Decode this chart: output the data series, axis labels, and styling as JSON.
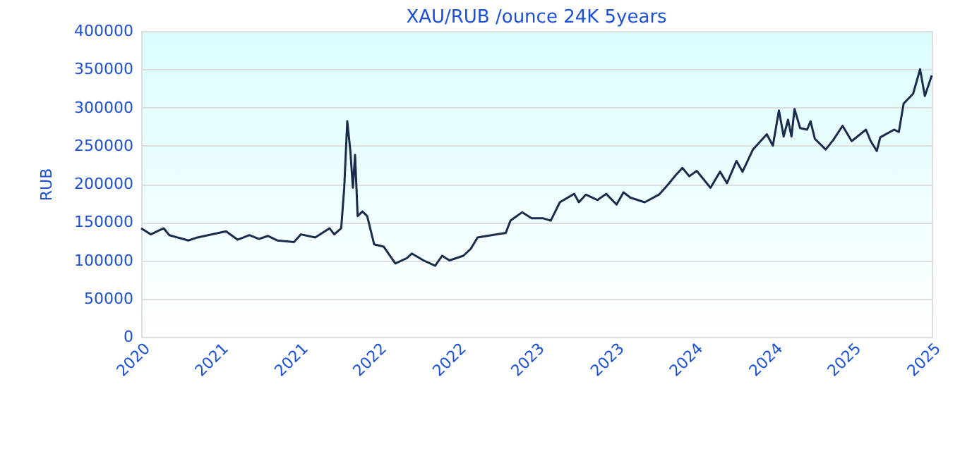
{
  "chart_data": {
    "type": "line",
    "title": "XAU/RUB /ounce 24K 5years",
    "ylabel": "RUB",
    "x": [
      "2020-11-01",
      "2020-11-23",
      "2020-12-23",
      "2021-01-05",
      "2021-02-18",
      "2021-03-11",
      "2021-05-16",
      "2021-06-12",
      "2021-07-09",
      "2021-07-31",
      "2021-08-21",
      "2021-09-12",
      "2021-10-20",
      "2021-11-05",
      "2021-12-08",
      "2022-01-10",
      "2022-01-21",
      "2022-02-06",
      "2022-02-13",
      "2022-02-20",
      "2022-02-27",
      "2022-03-05",
      "2022-03-10",
      "2022-03-16",
      "2022-03-27",
      "2022-04-07",
      "2022-04-23",
      "2022-05-15",
      "2022-06-11",
      "2022-07-08",
      "2022-07-19",
      "2022-08-15",
      "2022-09-11",
      "2022-09-27",
      "2022-10-14",
      "2022-11-15",
      "2022-12-02",
      "2022-12-18",
      "2023-01-09",
      "2023-02-21",
      "2023-03-04",
      "2023-03-31",
      "2023-04-22",
      "2023-05-19",
      "2023-06-05",
      "2023-06-26",
      "2023-07-29",
      "2023-08-09",
      "2023-08-25",
      "2023-09-21",
      "2023-10-11",
      "2023-11-04",
      "2023-11-20",
      "2023-12-06",
      "2024-01-08",
      "2024-02-10",
      "2024-02-26",
      "2024-03-22",
      "2024-04-04",
      "2024-04-20",
      "2024-05-07",
      "2024-06-08",
      "2024-06-30",
      "2024-07-16",
      "2024-08-07",
      "2024-08-21",
      "2024-09-14",
      "2024-10-16",
      "2024-10-30",
      "2024-11-13",
      "2024-11-24",
      "2024-12-04",
      "2024-12-12",
      "2024-12-19",
      "2025-01-01",
      "2025-01-17",
      "2025-01-25",
      "2025-02-04",
      "2025-03-01",
      "2025-03-18",
      "2025-04-09",
      "2025-04-30",
      "2025-06-02",
      "2025-06-13",
      "2025-06-27",
      "2025-07-05",
      "2025-08-06",
      "2025-08-17",
      "2025-08-28",
      "2025-09-19",
      "2025-10-05",
      "2025-10-16",
      "2025-11-01"
    ],
    "series": [
      {
        "color": "#1a2b4c",
        "values": [
          142000,
          134000,
          142000,
          133000,
          126000,
          130000,
          138000,
          127000,
          133000,
          128000,
          132000,
          126000,
          124000,
          134000,
          130000,
          142000,
          134000,
          142000,
          195000,
          282000,
          244000,
          195000,
          238000,
          158000,
          164000,
          158000,
          121000,
          118000,
          96000,
          103000,
          109000,
          100000,
          93000,
          106000,
          100000,
          106000,
          115000,
          130000,
          132000,
          136000,
          152000,
          163000,
          155000,
          155000,
          152000,
          176000,
          187000,
          176000,
          186000,
          179000,
          187000,
          173000,
          189000,
          182000,
          176000,
          186000,
          196000,
          213000,
          221000,
          210000,
          217000,
          195000,
          216000,
          201000,
          230000,
          216000,
          245000,
          265000,
          250000,
          296000,
          262000,
          284000,
          262000,
          298000,
          273000,
          271000,
          282000,
          259000,
          245000,
          257000,
          276000,
          256000,
          271000,
          256000,
          243000,
          261000,
          271000,
          268000,
          305000,
          318000,
          350000,
          315000,
          342000
        ]
      }
    ],
    "xlim": [
      "2020-11-01",
      "2025-11-01"
    ],
    "xticks": [
      {
        "value": "2020-11-01",
        "label": "2020"
      },
      {
        "value": "2021-05-01",
        "label": "2021"
      },
      {
        "value": "2021-11-01",
        "label": "2021"
      },
      {
        "value": "2022-05-01",
        "label": "2022"
      },
      {
        "value": "2022-11-01",
        "label": "2022"
      },
      {
        "value": "2023-05-01",
        "label": "2023"
      },
      {
        "value": "2023-11-01",
        "label": "2023"
      },
      {
        "value": "2024-05-01",
        "label": "2024"
      },
      {
        "value": "2024-11-01",
        "label": "2024"
      },
      {
        "value": "2025-05-01",
        "label": "2025"
      },
      {
        "value": "2025-11-01",
        "label": "2025"
      }
    ],
    "ylim": [
      0,
      400000
    ],
    "yticks": [
      0,
      50000,
      100000,
      150000,
      200000,
      250000,
      300000,
      350000,
      400000
    ],
    "grid": "y",
    "legend": false,
    "marker": "none",
    "line_style": "solid"
  }
}
